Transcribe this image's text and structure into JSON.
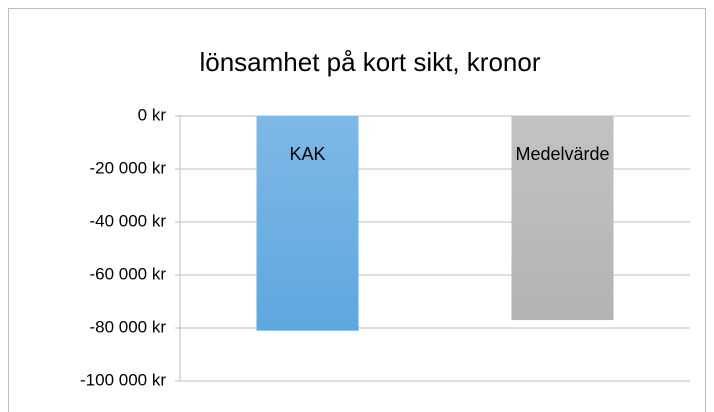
{
  "chart_data": {
    "type": "bar",
    "title": "lönsamhet på kort sikt, kronor",
    "categories": [
      "KAK",
      "Medelvärde"
    ],
    "values": [
      -81000,
      -77000
    ],
    "colors": [
      "#5ea7e0",
      "#b3b3b3"
    ],
    "ylim": [
      -100000,
      0
    ],
    "yticks": [
      {
        "value": 0,
        "label": "0 kr"
      },
      {
        "value": -20000,
        "label": "-20 000 kr"
      },
      {
        "value": -40000,
        "label": "-40 000 kr"
      },
      {
        "value": -60000,
        "label": "-60 000 kr"
      },
      {
        "value": -80000,
        "label": "-80 000 kr"
      },
      {
        "value": -100000,
        "label": "-100 000 kr"
      }
    ],
    "grid": true
  }
}
